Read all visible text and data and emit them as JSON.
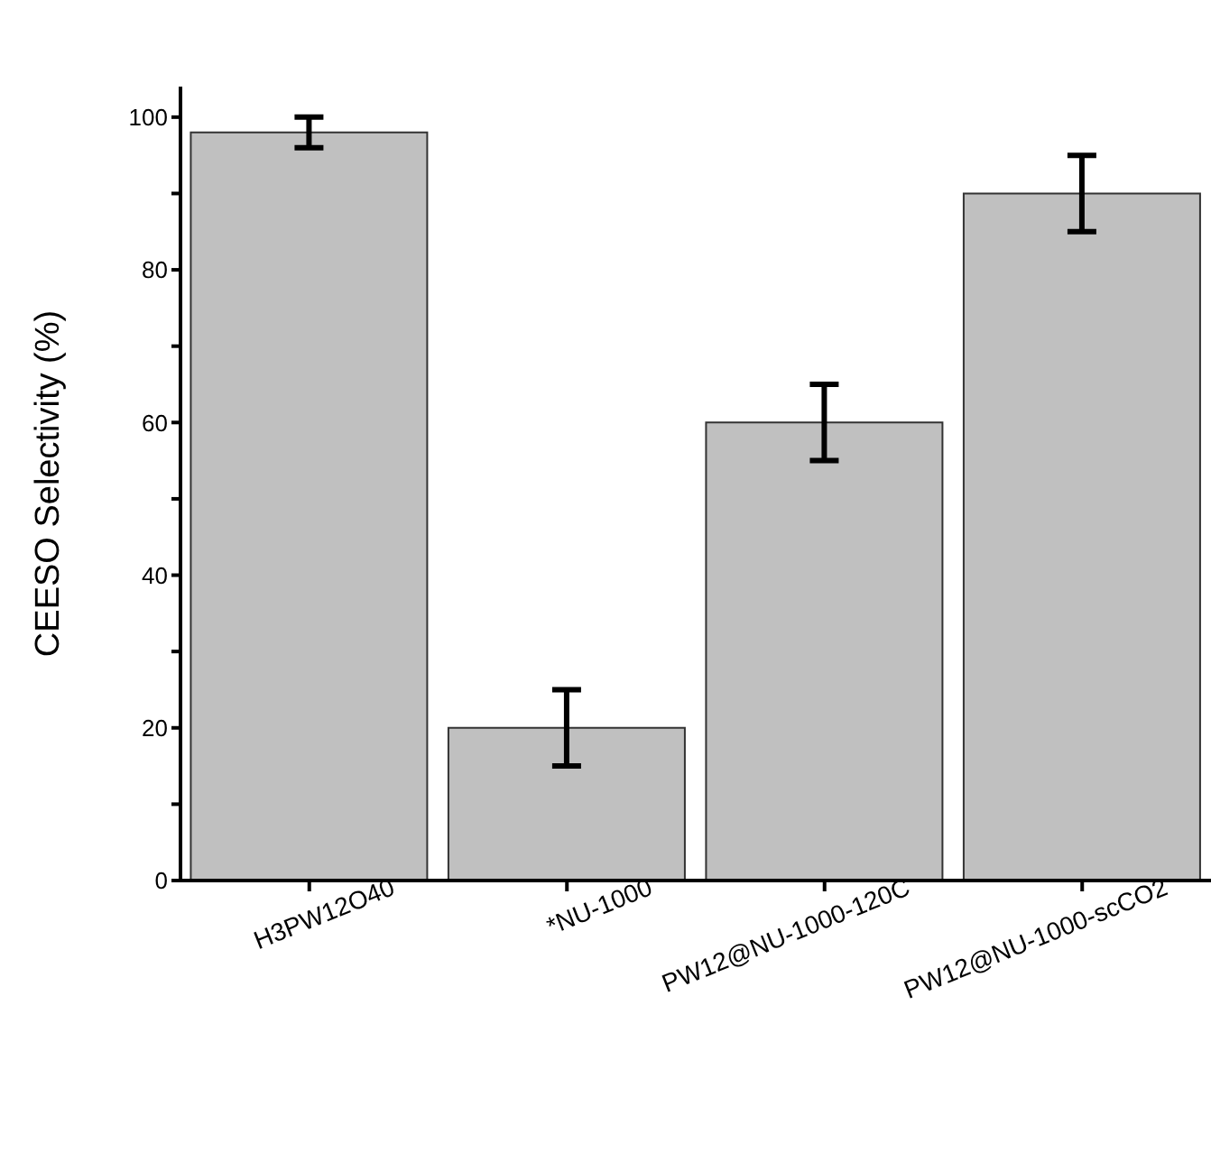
{
  "chart_data": {
    "type": "bar",
    "ylabel": "CEESO Selectivity (%)",
    "categories": [
      "H3PW12O40",
      "*NU-1000",
      "PW12@NU-1000-120C",
      "PW12@NU-1000-scCO2"
    ],
    "values": [
      98,
      20,
      60,
      90
    ],
    "errors": [
      2,
      5,
      5,
      5
    ],
    "color": "#c0c0c0",
    "ylim": [
      0,
      104
    ],
    "yticks": [
      0,
      {
        "value": 10,
        "label": null
      },
      20,
      {
        "value": 30,
        "label": null
      },
      40,
      {
        "value": 50,
        "label": null
      },
      60,
      {
        "value": 70,
        "label": null
      },
      80,
      {
        "value": 90,
        "label": null
      },
      100
    ],
    "grid": false,
    "legend": false
  }
}
